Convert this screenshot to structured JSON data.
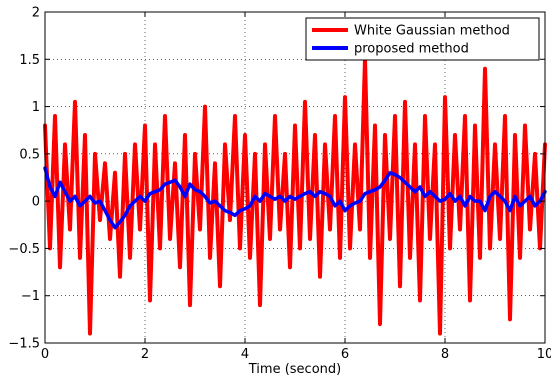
{
  "chart_data": {
    "type": "line",
    "xlabel": "Time (second)",
    "ylabel": "",
    "xlim": [
      0,
      10
    ],
    "ylim": [
      -1.5,
      2
    ],
    "xticks": [
      0,
      2,
      4,
      6,
      8,
      10
    ],
    "yticks": [
      -1.5,
      -1,
      -0.5,
      0,
      0.5,
      1,
      1.5,
      2
    ],
    "xtick_labels": [
      "0",
      "2",
      "4",
      "6",
      "8",
      "10"
    ],
    "ytick_labels": [
      "−1.5",
      "−1",
      "−0.5",
      "0",
      "0.5",
      "1",
      "1.5",
      "2"
    ],
    "grid": "dotted",
    "legend_position": "top-right",
    "series": [
      {
        "name": "White Gaussian method",
        "color": "#ff0000",
        "x": [
          0,
          0.1,
          0.2,
          0.3,
          0.4,
          0.5,
          0.6,
          0.7,
          0.8,
          0.9,
          1.0,
          1.1,
          1.2,
          1.3,
          1.4,
          1.5,
          1.6,
          1.7,
          1.8,
          1.9,
          2.0,
          2.1,
          2.2,
          2.3,
          2.4,
          2.5,
          2.6,
          2.7,
          2.8,
          2.9,
          3.0,
          3.1,
          3.2,
          3.3,
          3.4,
          3.5,
          3.6,
          3.7,
          3.8,
          3.9,
          4.0,
          4.1,
          4.2,
          4.3,
          4.4,
          4.5,
          4.6,
          4.7,
          4.8,
          4.9,
          5.0,
          5.1,
          5.2,
          5.3,
          5.4,
          5.5,
          5.6,
          5.7,
          5.8,
          5.9,
          6.0,
          6.1,
          6.2,
          6.3,
          6.4,
          6.5,
          6.6,
          6.7,
          6.8,
          6.9,
          7.0,
          7.1,
          7.2,
          7.3,
          7.4,
          7.5,
          7.6,
          7.7,
          7.8,
          7.9,
          8.0,
          8.1,
          8.2,
          8.3,
          8.4,
          8.5,
          8.6,
          8.7,
          8.8,
          8.9,
          9.0,
          9.1,
          9.2,
          9.3,
          9.4,
          9.5,
          9.6,
          9.7,
          9.8,
          9.9,
          10.0
        ],
        "y": [
          0.8,
          -0.5,
          0.9,
          -0.7,
          0.6,
          -0.3,
          1.05,
          -0.6,
          0.7,
          -1.4,
          0.5,
          -0.2,
          0.4,
          -0.4,
          0.3,
          -0.8,
          0.5,
          -0.6,
          0.6,
          -0.3,
          0.8,
          -1.05,
          0.6,
          -0.5,
          0.9,
          -0.4,
          0.4,
          -0.7,
          0.7,
          -1.1,
          0.5,
          -0.3,
          1.0,
          -0.6,
          0.4,
          -0.9,
          0.6,
          -0.2,
          0.9,
          -0.5,
          0.7,
          -0.6,
          0.5,
          -1.1,
          0.6,
          -0.4,
          0.9,
          -0.3,
          0.5,
          -0.7,
          0.8,
          -0.5,
          1.05,
          -0.4,
          0.7,
          -0.8,
          0.6,
          -0.3,
          0.9,
          -0.6,
          1.1,
          -0.5,
          0.6,
          -0.3,
          1.5,
          -0.6,
          0.8,
          -1.3,
          0.7,
          -0.4,
          0.9,
          -0.9,
          1.05,
          -0.6,
          0.6,
          -1.05,
          0.9,
          -0.4,
          0.6,
          -1.4,
          1.1,
          -0.5,
          0.7,
          -0.3,
          0.9,
          -1.05,
          0.8,
          -0.6,
          1.4,
          -0.5,
          0.6,
          -0.4,
          0.9,
          -1.25,
          0.7,
          -0.6,
          0.8,
          -0.3,
          0.5,
          -0.5,
          0.6
        ]
      },
      {
        "name": "proposed method",
        "color": "#0000ff",
        "x": [
          0,
          0.1,
          0.2,
          0.3,
          0.4,
          0.5,
          0.6,
          0.7,
          0.8,
          0.9,
          1.0,
          1.1,
          1.2,
          1.3,
          1.4,
          1.5,
          1.6,
          1.7,
          1.8,
          1.9,
          2.0,
          2.1,
          2.2,
          2.3,
          2.4,
          2.5,
          2.6,
          2.7,
          2.8,
          2.9,
          3.0,
          3.1,
          3.2,
          3.3,
          3.4,
          3.5,
          3.6,
          3.7,
          3.8,
          3.9,
          4.0,
          4.1,
          4.2,
          4.3,
          4.4,
          4.5,
          4.6,
          4.7,
          4.8,
          4.9,
          5.0,
          5.1,
          5.2,
          5.3,
          5.4,
          5.5,
          5.6,
          5.7,
          5.8,
          5.9,
          6.0,
          6.1,
          6.2,
          6.3,
          6.4,
          6.5,
          6.6,
          6.7,
          6.8,
          6.9,
          7.0,
          7.1,
          7.2,
          7.3,
          7.4,
          7.5,
          7.6,
          7.7,
          7.8,
          7.9,
          8.0,
          8.1,
          8.2,
          8.3,
          8.4,
          8.5,
          8.6,
          8.7,
          8.8,
          8.9,
          9.0,
          9.1,
          9.2,
          9.3,
          9.4,
          9.5,
          9.6,
          9.7,
          9.8,
          9.9,
          10.0
        ],
        "y": [
          0.35,
          0.15,
          0.05,
          0.2,
          0.1,
          0.0,
          0.05,
          -0.05,
          0.0,
          0.05,
          -0.02,
          0.0,
          -0.1,
          -0.2,
          -0.28,
          -0.22,
          -0.15,
          -0.05,
          0.0,
          0.05,
          0.0,
          0.08,
          0.1,
          0.12,
          0.18,
          0.2,
          0.22,
          0.15,
          0.05,
          0.18,
          0.12,
          0.1,
          0.05,
          -0.02,
          0.0,
          -0.05,
          -0.1,
          -0.12,
          -0.15,
          -0.1,
          -0.08,
          -0.05,
          0.05,
          0.0,
          0.08,
          0.05,
          0.02,
          0.05,
          0.0,
          0.05,
          0.02,
          0.05,
          0.08,
          0.1,
          0.05,
          0.1,
          0.08,
          0.05,
          -0.05,
          0.0,
          -0.1,
          -0.05,
          -0.02,
          0.0,
          0.08,
          0.1,
          0.12,
          0.15,
          0.22,
          0.3,
          0.28,
          0.25,
          0.2,
          0.15,
          0.1,
          0.15,
          0.05,
          0.1,
          0.05,
          0.0,
          0.02,
          0.08,
          0.0,
          0.05,
          -0.05,
          0.05,
          0.0,
          0.0,
          -0.1,
          0.05,
          0.1,
          0.05,
          0.0,
          -0.1,
          0.05,
          -0.05,
          0.0,
          0.05,
          -0.05,
          0.0,
          0.1
        ]
      }
    ]
  }
}
